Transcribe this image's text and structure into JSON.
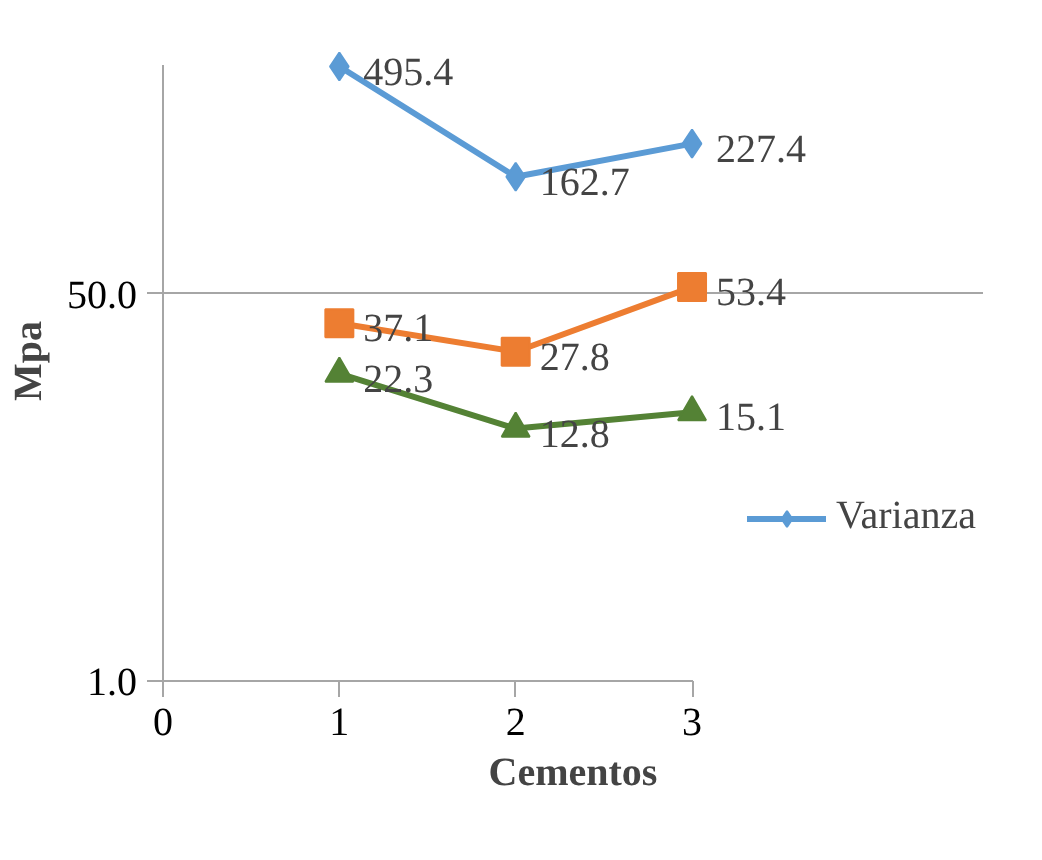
{
  "chart_data": {
    "type": "line",
    "xlabel": "Cementos",
    "ylabel": "Mpa",
    "x": [
      1,
      2,
      3
    ],
    "series": [
      {
        "name": "Varianza",
        "color": "#5b9bd5",
        "marker": "diamond",
        "values": [
          495.4,
          162.7,
          227.4
        ]
      },
      {
        "color": "#ed7d31",
        "marker": "square",
        "values": [
          37.1,
          27.8,
          53.4
        ]
      },
      {
        "color": "#548235",
        "marker": "triangle",
        "values": [
          22.3,
          12.8,
          15.1
        ]
      }
    ],
    "log": "y",
    "xlim": [
      0,
      3
    ],
    "xticks": [
      0,
      1,
      2,
      3
    ],
    "ylim": [
      1,
      500
    ],
    "yticks": [
      {
        "value": 1,
        "label": "1.0"
      },
      {
        "value": 50,
        "label": "50.0"
      }
    ],
    "grid": "y",
    "legend": "right",
    "data_labels": true,
    "line_style": "solid"
  }
}
